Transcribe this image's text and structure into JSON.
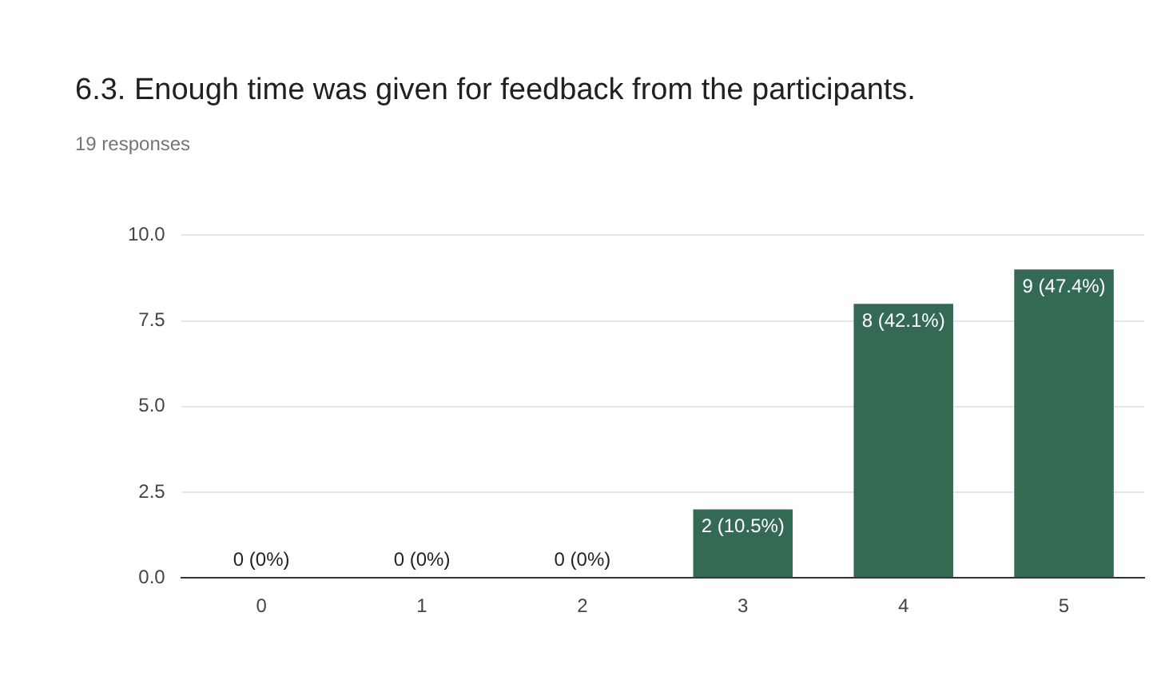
{
  "chart_data": {
    "type": "bar",
    "title": "6.3. Enough time was given for feedback from the participants.",
    "subtitle": "19 responses",
    "categories": [
      "0",
      "1",
      "2",
      "3",
      "4",
      "5"
    ],
    "values": [
      0,
      0,
      0,
      2,
      8,
      9
    ],
    "value_labels": [
      "0 (0%)",
      "0 (0%)",
      "0 (0%)",
      "2 (10.5%)",
      "8 (42.1%)",
      "9 (47.4%)"
    ],
    "color": "#346a54",
    "ylim": [
      0,
      10
    ],
    "yticks": [
      {
        "value": 0,
        "label": "0.0"
      },
      {
        "value": 2.5,
        "label": "2.5"
      },
      {
        "value": 5,
        "label": "5.0"
      },
      {
        "value": 7.5,
        "label": "7.5"
      },
      {
        "value": 10,
        "label": "10.0"
      }
    ],
    "grid": "y",
    "legend": false
  }
}
